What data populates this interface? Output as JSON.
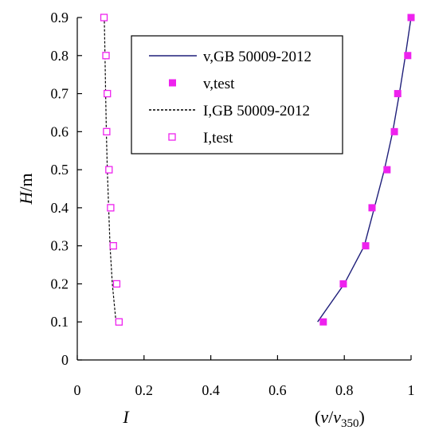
{
  "chart_data": {
    "type": "line",
    "xlim": [
      0,
      1
    ],
    "ylim": [
      0,
      0.9
    ],
    "x_ticks": [
      "0",
      "0.2",
      "0.4",
      "0.6",
      "0.8",
      "1"
    ],
    "y_ticks": [
      "0",
      "0.1",
      "0.2",
      "0.3",
      "0.4",
      "0.5",
      "0.6",
      "0.7",
      "0.8",
      "0.9"
    ],
    "xlabel_left": {
      "italic": "I"
    },
    "xlabel_right": {
      "open": "(",
      "v": "v",
      "slash": "/",
      "v2": "v",
      "sub": "350",
      "close": ")"
    },
    "ylabel": {
      "italic": "H",
      "rest": "/m"
    },
    "grid": false,
    "legend_position": "top-center",
    "series": [
      {
        "name": "v,GB 50009-2012",
        "style": "solid-line",
        "color": "#1f1f7a",
        "points": [
          [
            0.72,
            0.1
          ],
          [
            0.8,
            0.2
          ],
          [
            0.86,
            0.3
          ],
          [
            0.89,
            0.4
          ],
          [
            0.92,
            0.5
          ],
          [
            0.945,
            0.6
          ],
          [
            0.965,
            0.7
          ],
          [
            0.983,
            0.8
          ],
          [
            1.0,
            0.9
          ]
        ]
      },
      {
        "name": "v,test",
        "style": "filled-square",
        "color": "#ee22ee",
        "points": [
          [
            0.737,
            0.1
          ],
          [
            0.797,
            0.2
          ],
          [
            0.864,
            0.3
          ],
          [
            0.883,
            0.4
          ],
          [
            0.928,
            0.5
          ],
          [
            0.95,
            0.6
          ],
          [
            0.96,
            0.7
          ],
          [
            0.99,
            0.8
          ],
          [
            1.0,
            0.9
          ]
        ]
      },
      {
        "name": "I,GB 50009-2012",
        "style": "dashed-line",
        "color": "#000000",
        "points": [
          [
            0.116,
            0.1
          ],
          [
            0.105,
            0.2
          ],
          [
            0.098,
            0.3
          ],
          [
            0.094,
            0.4
          ],
          [
            0.09,
            0.5
          ],
          [
            0.087,
            0.6
          ],
          [
            0.085,
            0.7
          ],
          [
            0.083,
            0.8
          ],
          [
            0.081,
            0.9
          ]
        ]
      },
      {
        "name": "I,test",
        "style": "open-square",
        "color": "#ee22ee",
        "points": [
          [
            0.125,
            0.1
          ],
          [
            0.118,
            0.2
          ],
          [
            0.108,
            0.3
          ],
          [
            0.1,
            0.4
          ],
          [
            0.095,
            0.5
          ],
          [
            0.088,
            0.6
          ],
          [
            0.09,
            0.7
          ],
          [
            0.086,
            0.8
          ],
          [
            0.08,
            0.9
          ]
        ]
      }
    ]
  }
}
